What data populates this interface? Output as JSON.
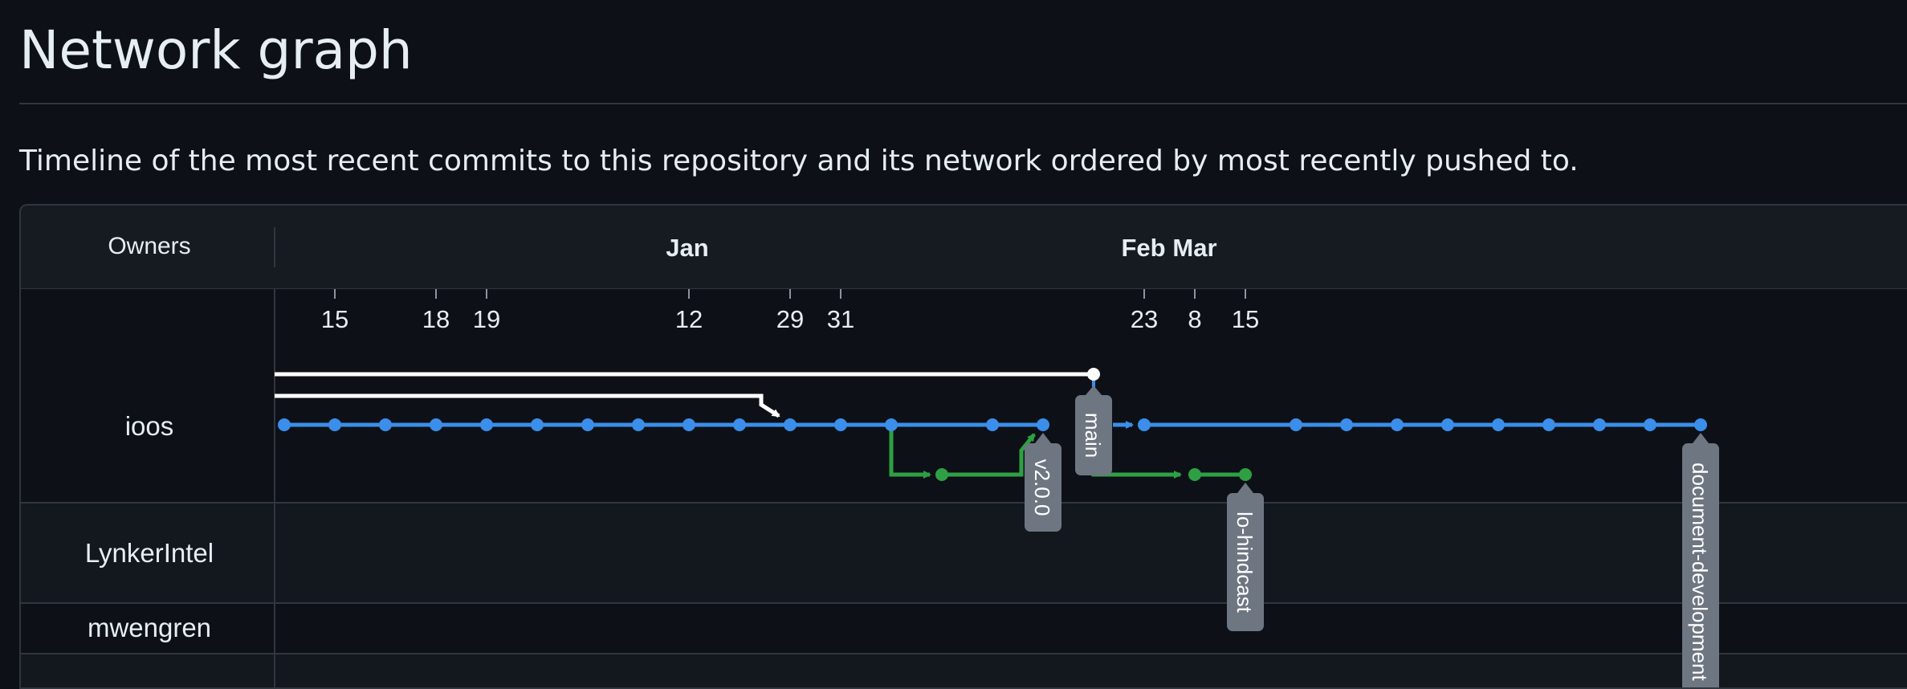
{
  "header": {
    "title": "Network graph",
    "description": "Timeline of the most recent commits to this repository and its network ordered by most recently pushed to."
  },
  "graph": {
    "owners_heading": "Owners",
    "months": [
      {
        "id": "jan",
        "label": "Jan"
      },
      {
        "id": "feb",
        "label": "Feb"
      },
      {
        "id": "mar",
        "label": "Mar"
      }
    ],
    "days": [
      "15",
      "18",
      "19",
      "12",
      "29",
      "31",
      "23",
      "8",
      "15"
    ],
    "owners": [
      "ioos",
      "LynkerIntel",
      "mwengren"
    ],
    "branch_labels": [
      {
        "id": "v2",
        "label": "v2.0.0"
      },
      {
        "id": "main",
        "label": "main"
      },
      {
        "id": "lo",
        "label": "lo-hindcast"
      },
      {
        "id": "doc",
        "label": "document-development"
      }
    ],
    "colors": {
      "background": "#0d1117",
      "header_bg": "#161b22",
      "alt_row_bg": "#13171e",
      "border": "#30363d",
      "main_line": "#3b8eea",
      "branch_line": "#2ea043",
      "fork_line": "#ffffff",
      "label_bg": "#6e7681"
    }
  }
}
